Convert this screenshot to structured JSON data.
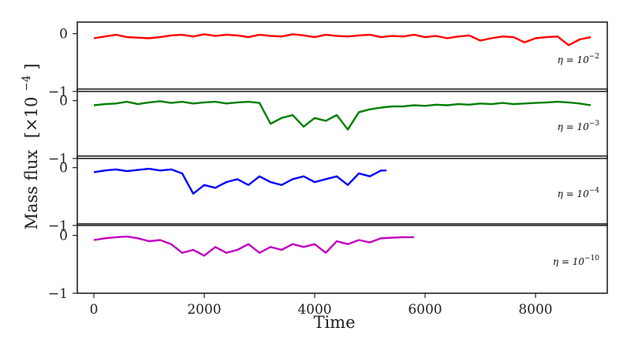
{
  "chart_data": {
    "type": "line",
    "xlabel": "Time",
    "ylabel_main": "Mass flux",
    "ylabel_units": "[×10",
    "ylabel_exp": "−4",
    "ylabel_close": "]",
    "xlim": [
      -300,
      9300
    ],
    "xticks": [
      0,
      2000,
      4000,
      6000,
      8000
    ],
    "xtick_labels": [
      "0",
      "2000",
      "4000",
      "6000",
      "8000"
    ],
    "ylim": [
      -1,
      0.2
    ],
    "yticks": [
      0,
      -1
    ],
    "ytick_labels": [
      "0",
      "−1"
    ],
    "panels": [
      {
        "eta_base": "η = 10",
        "eta_exp": "−2",
        "color": "#ff0000",
        "t_end": 9000,
        "x": [
          0,
          200,
          400,
          600,
          800,
          1000,
          1200,
          1400,
          1600,
          1800,
          2000,
          2200,
          2400,
          2600,
          2800,
          3000,
          3200,
          3400,
          3600,
          3800,
          4000,
          4200,
          4400,
          4600,
          4800,
          5000,
          5200,
          5400,
          5600,
          5800,
          6000,
          6200,
          6400,
          6600,
          6800,
          7000,
          7200,
          7400,
          7600,
          7800,
          8000,
          8200,
          8400,
          8600,
          8800,
          9000
        ],
        "y": [
          -0.08,
          -0.05,
          -0.02,
          -0.06,
          -0.07,
          -0.08,
          -0.06,
          -0.03,
          -0.02,
          -0.05,
          -0.01,
          -0.04,
          -0.02,
          -0.03,
          -0.06,
          -0.02,
          -0.04,
          -0.05,
          -0.01,
          -0.03,
          -0.06,
          -0.02,
          -0.04,
          -0.05,
          -0.03,
          -0.02,
          -0.06,
          -0.04,
          -0.05,
          -0.02,
          -0.06,
          -0.04,
          -0.08,
          -0.05,
          -0.03,
          -0.12,
          -0.08,
          -0.05,
          -0.06,
          -0.15,
          -0.08,
          -0.06,
          -0.05,
          -0.2,
          -0.1,
          -0.06
        ]
      },
      {
        "eta_base": "η = 10",
        "eta_exp": "−3",
        "color": "#008000",
        "t_end": 9000,
        "x": [
          0,
          200,
          400,
          600,
          800,
          1000,
          1200,
          1400,
          1600,
          1800,
          2000,
          2200,
          2400,
          2600,
          2800,
          3000,
          3200,
          3400,
          3600,
          3800,
          4000,
          4200,
          4400,
          4600,
          4800,
          5000,
          5200,
          5400,
          5600,
          5800,
          6000,
          6200,
          6400,
          6600,
          6800,
          7000,
          7200,
          7400,
          7600,
          7800,
          8000,
          8200,
          8400,
          8600,
          8800,
          9000
        ],
        "y": [
          -0.08,
          -0.06,
          -0.05,
          -0.02,
          -0.06,
          -0.03,
          -0.01,
          -0.04,
          -0.02,
          -0.05,
          -0.03,
          -0.02,
          -0.05,
          -0.03,
          -0.02,
          -0.04,
          -0.4,
          -0.3,
          -0.25,
          -0.45,
          -0.3,
          -0.35,
          -0.25,
          -0.5,
          -0.2,
          -0.15,
          -0.12,
          -0.1,
          -0.1,
          -0.08,
          -0.09,
          -0.07,
          -0.08,
          -0.06,
          -0.07,
          -0.05,
          -0.06,
          -0.04,
          -0.06,
          -0.05,
          -0.04,
          -0.03,
          -0.02,
          -0.03,
          -0.05,
          -0.08
        ]
      },
      {
        "eta_base": "η = 10",
        "eta_exp": "−4",
        "color": "#0000ff",
        "t_end": 5300,
        "x": [
          0,
          200,
          400,
          600,
          800,
          1000,
          1200,
          1400,
          1600,
          1800,
          2000,
          2200,
          2400,
          2600,
          2800,
          3000,
          3200,
          3400,
          3600,
          3800,
          4000,
          4200,
          4400,
          4600,
          4800,
          5000,
          5200,
          5300
        ],
        "y": [
          -0.08,
          -0.05,
          -0.03,
          -0.06,
          -0.04,
          -0.02,
          -0.05,
          -0.03,
          -0.1,
          -0.45,
          -0.3,
          -0.35,
          -0.25,
          -0.2,
          -0.3,
          -0.15,
          -0.25,
          -0.3,
          -0.2,
          -0.15,
          -0.25,
          -0.2,
          -0.15,
          -0.3,
          -0.1,
          -0.15,
          -0.05,
          -0.05
        ]
      },
      {
        "eta_base": "η = 10",
        "eta_exp": "−10",
        "color": "#c000c0",
        "t_end": 5800,
        "x": [
          0,
          200,
          400,
          600,
          800,
          1000,
          1200,
          1400,
          1600,
          1800,
          2000,
          2200,
          2400,
          2600,
          2800,
          3000,
          3200,
          3400,
          3600,
          3800,
          4000,
          4200,
          4400,
          4600,
          4800,
          5000,
          5200,
          5400,
          5600,
          5800
        ],
        "y": [
          -0.08,
          -0.05,
          -0.03,
          -0.02,
          -0.05,
          -0.1,
          -0.08,
          -0.15,
          -0.3,
          -0.25,
          -0.35,
          -0.2,
          -0.3,
          -0.25,
          -0.15,
          -0.3,
          -0.2,
          -0.25,
          -0.15,
          -0.2,
          -0.15,
          -0.3,
          -0.1,
          -0.15,
          -0.08,
          -0.12,
          -0.05,
          -0.04,
          -0.03,
          -0.03
        ]
      }
    ]
  }
}
